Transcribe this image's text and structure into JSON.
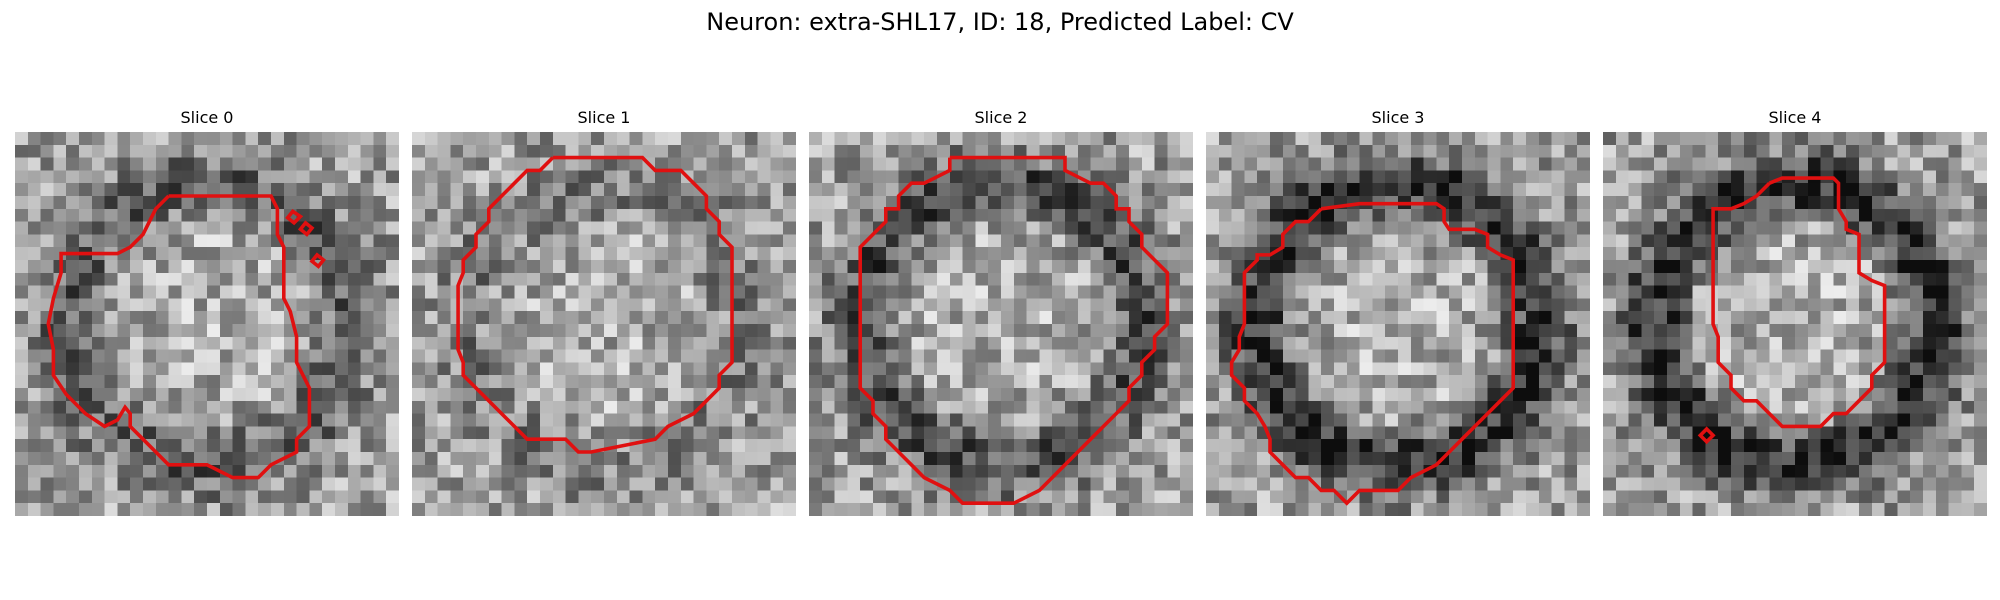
{
  "figure": {
    "title": "Neuron: extra-SHL17, ID: 18, Predicted Label: CV"
  },
  "panels": [
    {
      "title": "Slice 0",
      "dark_ring": "thin",
      "seed": 11
    },
    {
      "title": "Slice 1",
      "dark_ring": "faint",
      "seed": 23
    },
    {
      "title": "Slice 2",
      "dark_ring": "medium",
      "seed": 37
    },
    {
      "title": "Slice 3",
      "dark_ring": "strong",
      "seed": 41
    },
    {
      "title": "Slice 4",
      "dark_ring": "strong",
      "seed": 53
    }
  ],
  "colors": {
    "contour": "#e01010",
    "background": "#ffffff"
  },
  "image": {
    "grid": 30,
    "colormap": "grayscale"
  }
}
